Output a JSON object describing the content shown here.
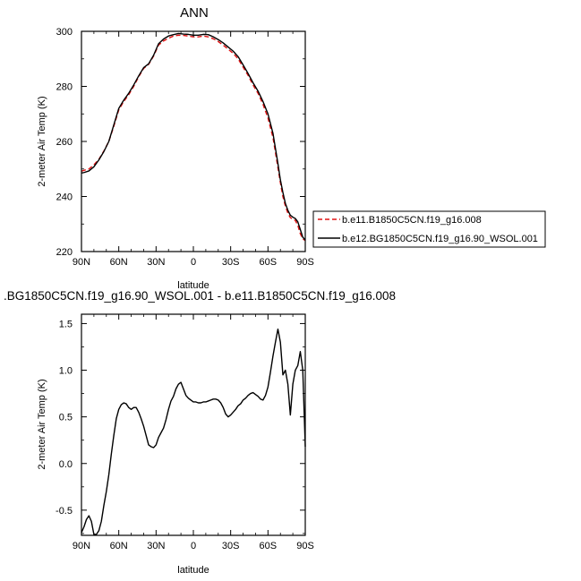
{
  "chart_data": [
    {
      "type": "line",
      "title": "ANN",
      "xlabel": "latitude",
      "ylabel": "2-meter Air Temp (K)",
      "x_ticks": [
        90,
        60,
        30,
        0,
        -30,
        -60,
        -90
      ],
      "x_tick_labels": [
        "90N",
        "60N",
        "30N",
        "0",
        "30S",
        "60S",
        "90S"
      ],
      "xlim": [
        90,
        -90
      ],
      "ylim": [
        220,
        300
      ],
      "y_ticks": [
        220,
        240,
        260,
        280,
        300
      ],
      "grid": false,
      "legend": "right",
      "series": [
        {
          "name": "b.e11.B1850C5CN.f19_g16.008",
          "color": "#e01010",
          "dash": true,
          "x": [
            90,
            88,
            84,
            80,
            76,
            72,
            68,
            64,
            60,
            56,
            52,
            48,
            44,
            40,
            36,
            32,
            28,
            24,
            20,
            16,
            12,
            8,
            4,
            0,
            -4,
            -8,
            -12,
            -16,
            -20,
            -24,
            -28,
            -32,
            -36,
            -40,
            -44,
            -48,
            -52,
            -56,
            -60,
            -64,
            -66,
            -68,
            -70,
            -72,
            -74,
            -76,
            -78,
            -80,
            -82,
            -84,
            -86,
            -88,
            -90
          ],
          "y": [
            249.2,
            249.5,
            250.0,
            251.5,
            253.5,
            256.5,
            260.0,
            265.5,
            271.5,
            274.5,
            277.0,
            280.0,
            283.5,
            286.5,
            288.0,
            291.0,
            295.0,
            296.5,
            297.5,
            298.3,
            298.6,
            298.5,
            298.3,
            298.0,
            298.0,
            298.3,
            298.0,
            297.3,
            296.3,
            295.0,
            293.5,
            292.0,
            290.0,
            287.0,
            284.0,
            280.5,
            277.5,
            273.5,
            268.5,
            261.5,
            256.0,
            250.5,
            245.0,
            240.0,
            236.5,
            234.0,
            232.3,
            231.8,
            231.3,
            229.5,
            226.5,
            224.6,
            224.0
          ]
        },
        {
          "name": "b.e12.BG1850C5CN.f19_g16.90_WSOL.001",
          "color": "#000000",
          "dash": false,
          "x": [
            90,
            88,
            84,
            80,
            76,
            72,
            68,
            64,
            60,
            56,
            52,
            48,
            44,
            40,
            36,
            32,
            28,
            24,
            20,
            16,
            12,
            8,
            4,
            0,
            -4,
            -8,
            -12,
            -16,
            -20,
            -24,
            -28,
            -32,
            -36,
            -40,
            -44,
            -48,
            -52,
            -56,
            -60,
            -64,
            -66,
            -68,
            -70,
            -72,
            -74,
            -76,
            -78,
            -80,
            -82,
            -84,
            -86,
            -88,
            -90
          ],
          "y": [
            248.5,
            248.7,
            249.3,
            250.8,
            253.3,
            256.3,
            260.0,
            266.0,
            272.0,
            275.0,
            277.5,
            280.5,
            283.8,
            286.8,
            288.2,
            291.3,
            295.5,
            297.2,
            298.3,
            298.8,
            299.2,
            299.0,
            298.9,
            298.6,
            298.6,
            298.9,
            298.8,
            298.0,
            297.0,
            295.8,
            294.3,
            292.8,
            290.8,
            287.8,
            284.7,
            281.3,
            278.3,
            274.5,
            270.0,
            263.0,
            257.5,
            252.0,
            246.0,
            241.5,
            237.5,
            235.0,
            233.2,
            232.5,
            232.0,
            230.8,
            228.0,
            225.2,
            224.2
          ]
        }
      ]
    },
    {
      "type": "line",
      "title": ".BG1850C5CN.f19_g16.90_WSOL.001 - b.e11.B1850C5CN.f19_g16.008",
      "xlabel": "latitude",
      "ylabel": "2-meter Air Temp (K)",
      "x_ticks": [
        90,
        60,
        30,
        0,
        -30,
        -60,
        -90
      ],
      "x_tick_labels": [
        "90N",
        "60N",
        "30N",
        "0",
        "30S",
        "60S",
        "90S"
      ],
      "xlim": [
        90,
        -90
      ],
      "ylim": [
        -0.77,
        1.6
      ],
      "y_ticks": [
        -0.5,
        0.0,
        0.5,
        1.0,
        1.5
      ],
      "y_tick_labels": [
        "-0.5",
        "0.0",
        "0.5",
        "1.0",
        "1.5"
      ],
      "grid": false,
      "series": [
        {
          "color": "#000000",
          "x": [
            90,
            88,
            86,
            84,
            82,
            80,
            78,
            76,
            74,
            72,
            70,
            68,
            66,
            64,
            62,
            60,
            58,
            56,
            54,
            52,
            50,
            48,
            46,
            44,
            42,
            40,
            38,
            36,
            34,
            32,
            30,
            28,
            26,
            24,
            22,
            20,
            18,
            16,
            14,
            12,
            10,
            8,
            6,
            4,
            2,
            0,
            -2,
            -4,
            -6,
            -8,
            -10,
            -12,
            -14,
            -16,
            -18,
            -20,
            -22,
            -24,
            -26,
            -28,
            -30,
            -32,
            -34,
            -36,
            -38,
            -40,
            -42,
            -44,
            -46,
            -48,
            -50,
            -52,
            -54,
            -56,
            -58,
            -60,
            -62,
            -64,
            -66,
            -68,
            -70,
            -72,
            -74,
            -76,
            -78,
            -80,
            -82,
            -84,
            -86,
            -88,
            -90
          ],
          "y": [
            -0.74,
            -0.68,
            -0.6,
            -0.56,
            -0.62,
            -0.76,
            -0.76,
            -0.72,
            -0.62,
            -0.45,
            -0.3,
            -0.12,
            0.1,
            0.3,
            0.48,
            0.58,
            0.63,
            0.65,
            0.64,
            0.6,
            0.58,
            0.6,
            0.6,
            0.55,
            0.48,
            0.4,
            0.3,
            0.2,
            0.18,
            0.17,
            0.2,
            0.28,
            0.33,
            0.38,
            0.47,
            0.58,
            0.67,
            0.72,
            0.8,
            0.85,
            0.87,
            0.8,
            0.73,
            0.7,
            0.68,
            0.66,
            0.66,
            0.65,
            0.65,
            0.66,
            0.66,
            0.67,
            0.68,
            0.69,
            0.69,
            0.68,
            0.65,
            0.6,
            0.53,
            0.5,
            0.52,
            0.55,
            0.58,
            0.62,
            0.64,
            0.68,
            0.7,
            0.73,
            0.75,
            0.76,
            0.74,
            0.72,
            0.69,
            0.68,
            0.73,
            0.82,
            0.98,
            1.15,
            1.3,
            1.44,
            1.3,
            0.95,
            1.0,
            0.85,
            0.52,
            0.85,
            1.0,
            1.05,
            1.2,
            1.0,
            0.18
          ]
        }
      ]
    }
  ]
}
